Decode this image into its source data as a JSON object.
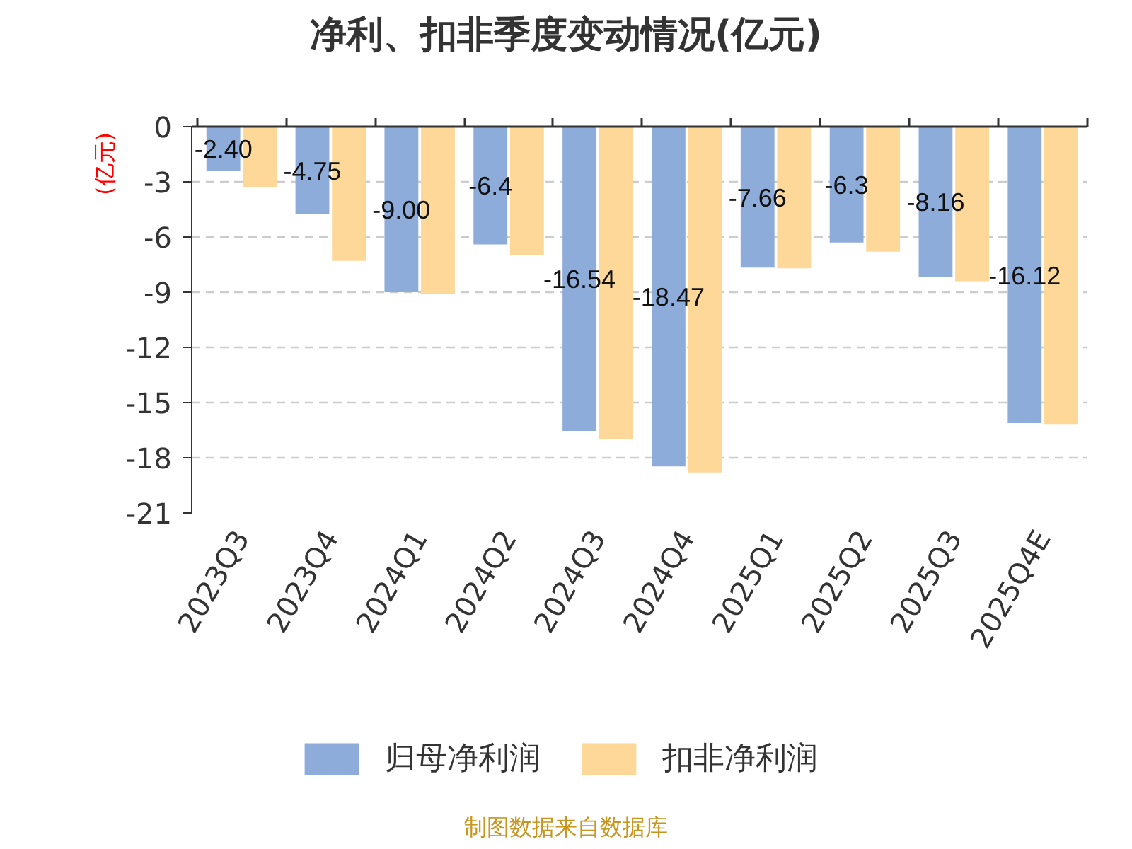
{
  "chart_data": {
    "type": "bar",
    "title": "净利、扣非季度变动情况(亿元)",
    "ylabel": "(亿元)",
    "categories": [
      "2023Q3",
      "2023Q4",
      "2024Q1",
      "2024Q2",
      "2024Q3",
      "2024Q4",
      "2025Q1",
      "2025Q2",
      "2025Q3",
      "2025Q4E"
    ],
    "series": [
      {
        "name": "归母净利润",
        "color": "#8eacda",
        "values": [
          -2.4,
          -4.75,
          -9.0,
          -6.4,
          -16.54,
          -18.47,
          -7.66,
          -6.3,
          -8.16,
          -16.12
        ],
        "value_labels": [
          "-2.40",
          "-4.75",
          "-9.00",
          "-6.4",
          "-16.54",
          "-18.47",
          "-7.66",
          "-6.3",
          "-8.16",
          "-16.12"
        ]
      },
      {
        "name": "扣非净利润",
        "color": "#fed898",
        "values": [
          -3.3,
          -7.3,
          -9.1,
          -7.0,
          -17.0,
          -18.8,
          -7.7,
          -6.8,
          -8.4,
          -16.2
        ]
      }
    ],
    "ylim": [
      -21,
      0
    ],
    "yticks": [
      0,
      -3,
      -6,
      -9,
      -12,
      -15,
      -18,
      -21
    ],
    "grid": "y",
    "legend": "bottom",
    "annotations": [
      "制图数据来自数据库"
    ]
  }
}
